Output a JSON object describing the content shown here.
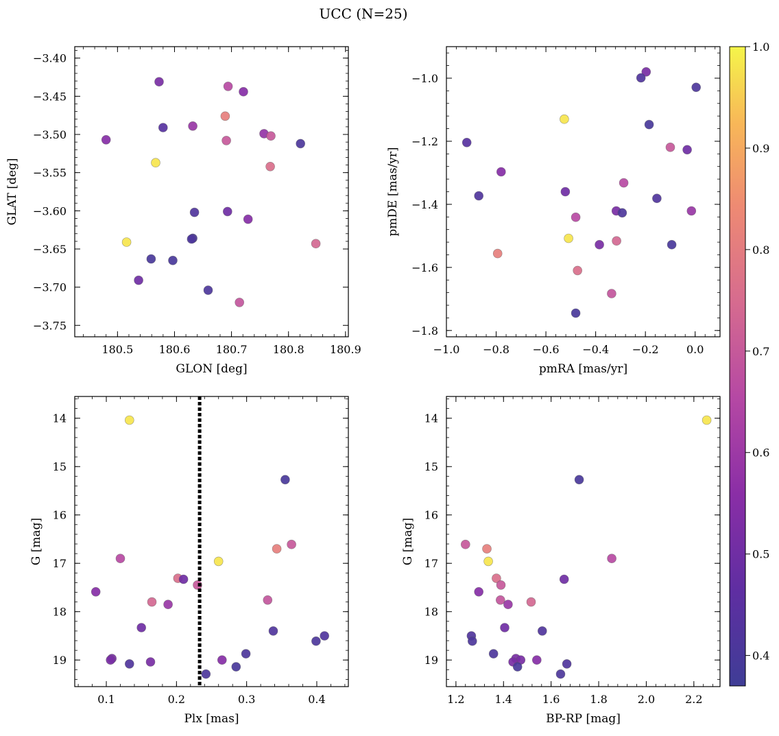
{
  "figure": {
    "suptitle": "UCC (N=25)",
    "colormap": "plasma",
    "colorbar": {
      "ticks": [
        "0.4",
        "0.5",
        "0.6",
        "0.7",
        "0.8",
        "0.9",
        "1.0"
      ],
      "range": [
        0.37,
        1.0
      ]
    }
  },
  "chart_data": [
    {
      "type": "scatter",
      "xlabel": "GLON [deg]",
      "ylabel": "GLAT [deg]",
      "xlim": [
        180.425,
        180.905
      ],
      "ylim": [
        -3.765,
        -3.385
      ],
      "xticks": [
        "180.5",
        "180.6",
        "180.7",
        "180.8",
        "180.9"
      ],
      "yticks": [
        "−3.40",
        "−3.45",
        "−3.50",
        "−3.55",
        "−3.60",
        "−3.65",
        "−3.70",
        "−3.75"
      ],
      "points": [
        {
          "x": 180.573,
          "y": -3.431,
          "c": 0.52
        },
        {
          "x": 180.694,
          "y": -3.437,
          "c": 0.66
        },
        {
          "x": 180.721,
          "y": -3.444,
          "c": 0.55
        },
        {
          "x": 180.689,
          "y": -3.476,
          "c": 0.81
        },
        {
          "x": 180.48,
          "y": -3.507,
          "c": 0.55
        },
        {
          "x": 180.58,
          "y": -3.491,
          "c": 0.44
        },
        {
          "x": 180.632,
          "y": -3.489,
          "c": 0.59
        },
        {
          "x": 180.757,
          "y": -3.499,
          "c": 0.58
        },
        {
          "x": 180.769,
          "y": -3.502,
          "c": 0.7
        },
        {
          "x": 180.691,
          "y": -3.508,
          "c": 0.7
        },
        {
          "x": 180.821,
          "y": -3.512,
          "c": 0.41
        },
        {
          "x": 180.567,
          "y": -3.537,
          "c": 0.98
        },
        {
          "x": 180.768,
          "y": -3.542,
          "c": 0.76
        },
        {
          "x": 180.635,
          "y": -3.602,
          "c": 0.42
        },
        {
          "x": 180.693,
          "y": -3.601,
          "c": 0.5
        },
        {
          "x": 180.729,
          "y": -3.611,
          "c": 0.55
        },
        {
          "x": 180.632,
          "y": -3.636,
          "c": 0.4
        },
        {
          "x": 180.516,
          "y": -3.641,
          "c": 0.98
        },
        {
          "x": 180.848,
          "y": -3.643,
          "c": 0.74
        },
        {
          "x": 180.559,
          "y": -3.663,
          "c": 0.4
        },
        {
          "x": 180.597,
          "y": -3.665,
          "c": 0.4
        },
        {
          "x": 180.537,
          "y": -3.691,
          "c": 0.5
        },
        {
          "x": 180.659,
          "y": -3.704,
          "c": 0.41
        },
        {
          "x": 180.714,
          "y": -3.72,
          "c": 0.69
        },
        {
          "x": 180.63,
          "y": -3.637,
          "c": 0.41
        }
      ]
    },
    {
      "type": "scatter",
      "xlabel": "pmRA [mas/yr]",
      "ylabel": "pmDE [mas/yr]",
      "xlim": [
        -1.0,
        0.1
      ],
      "ylim": [
        -1.82,
        -0.9
      ],
      "xticks": [
        "−1.0",
        "−0.8",
        "−0.6",
        "−0.4",
        "−0.2",
        "0.0"
      ],
      "yticks": [
        "−1.0",
        "−1.2",
        "−1.4",
        "−1.6",
        "−1.8"
      ],
      "points": [
        {
          "x": -0.197,
          "y": -0.98,
          "c": 0.52
        },
        {
          "x": -0.218,
          "y": -0.999,
          "c": 0.42
        },
        {
          "x": 0.004,
          "y": -1.029,
          "c": 0.41
        },
        {
          "x": -0.526,
          "y": -1.13,
          "c": 0.98
        },
        {
          "x": -0.185,
          "y": -1.147,
          "c": 0.4
        },
        {
          "x": -0.918,
          "y": -1.204,
          "c": 0.44
        },
        {
          "x": -0.1,
          "y": -1.219,
          "c": 0.7
        },
        {
          "x": -0.032,
          "y": -1.227,
          "c": 0.5
        },
        {
          "x": -0.78,
          "y": -1.297,
          "c": 0.55
        },
        {
          "x": -0.287,
          "y": -1.332,
          "c": 0.66
        },
        {
          "x": -0.522,
          "y": -1.36,
          "c": 0.5
        },
        {
          "x": -0.87,
          "y": -1.373,
          "c": 0.42
        },
        {
          "x": -0.154,
          "y": -1.381,
          "c": 0.42
        },
        {
          "x": -0.317,
          "y": -1.421,
          "c": 0.52
        },
        {
          "x": -0.015,
          "y": -1.421,
          "c": 0.59
        },
        {
          "x": -0.293,
          "y": -1.427,
          "c": 0.41
        },
        {
          "x": -0.48,
          "y": -1.441,
          "c": 0.66
        },
        {
          "x": -0.509,
          "y": -1.508,
          "c": 0.98
        },
        {
          "x": -0.316,
          "y": -1.516,
          "c": 0.74
        },
        {
          "x": -0.385,
          "y": -1.528,
          "c": 0.52
        },
        {
          "x": -0.094,
          "y": -1.528,
          "c": 0.4
        },
        {
          "x": -0.794,
          "y": -1.556,
          "c": 0.81
        },
        {
          "x": -0.473,
          "y": -1.61,
          "c": 0.76
        },
        {
          "x": -0.336,
          "y": -1.683,
          "c": 0.69
        },
        {
          "x": -0.48,
          "y": -1.745,
          "c": 0.4
        }
      ]
    },
    {
      "type": "scatter",
      "xlabel": "Plx [mas]",
      "ylabel": "G [mag]",
      "xlim": [
        0.055,
        0.445
      ],
      "ylim": [
        19.55,
        13.55
      ],
      "xticks": [
        "0.1",
        "0.2",
        "0.3",
        "0.4"
      ],
      "yticks": [
        "14",
        "15",
        "16",
        "17",
        "18",
        "19"
      ],
      "vline": {
        "x": 0.233
      },
      "points": [
        {
          "x": 0.133,
          "y": 14.04,
          "c": 0.98
        },
        {
          "x": 0.355,
          "y": 15.27,
          "c": 0.4
        },
        {
          "x": 0.364,
          "y": 16.61,
          "c": 0.7
        },
        {
          "x": 0.343,
          "y": 16.7,
          "c": 0.81
        },
        {
          "x": 0.12,
          "y": 16.9,
          "c": 0.66
        },
        {
          "x": 0.26,
          "y": 16.96,
          "c": 0.98
        },
        {
          "x": 0.202,
          "y": 17.31,
          "c": 0.76
        },
        {
          "x": 0.21,
          "y": 17.33,
          "c": 0.5
        },
        {
          "x": 0.23,
          "y": 17.45,
          "c": 0.7
        },
        {
          "x": 0.085,
          "y": 17.59,
          "c": 0.55
        },
        {
          "x": 0.33,
          "y": 17.76,
          "c": 0.69
        },
        {
          "x": 0.165,
          "y": 17.8,
          "c": 0.74
        },
        {
          "x": 0.188,
          "y": 17.85,
          "c": 0.59
        },
        {
          "x": 0.15,
          "y": 18.33,
          "c": 0.5
        },
        {
          "x": 0.338,
          "y": 18.4,
          "c": 0.42
        },
        {
          "x": 0.411,
          "y": 18.5,
          "c": 0.42
        },
        {
          "x": 0.399,
          "y": 18.61,
          "c": 0.41
        },
        {
          "x": 0.299,
          "y": 18.87,
          "c": 0.41
        },
        {
          "x": 0.108,
          "y": 18.97,
          "c": 0.52
        },
        {
          "x": 0.106,
          "y": 19.0,
          "c": 0.52
        },
        {
          "x": 0.265,
          "y": 19.0,
          "c": 0.55
        },
        {
          "x": 0.163,
          "y": 19.04,
          "c": 0.52
        },
        {
          "x": 0.133,
          "y": 19.08,
          "c": 0.42
        },
        {
          "x": 0.285,
          "y": 19.14,
          "c": 0.4
        },
        {
          "x": 0.242,
          "y": 19.29,
          "c": 0.41
        }
      ]
    },
    {
      "type": "scatter",
      "xlabel": "BP-RP [mag]",
      "ylabel": "G [mag]",
      "xlim": [
        1.16,
        2.31
      ],
      "ylim": [
        19.55,
        13.55
      ],
      "xticks": [
        "1.2",
        "1.4",
        "1.6",
        "1.8",
        "2.0",
        "2.2"
      ],
      "yticks": [
        "14",
        "15",
        "16",
        "17",
        "18",
        "19"
      ],
      "points": [
        {
          "x": 2.254,
          "y": 14.04,
          "c": 0.98
        },
        {
          "x": 1.718,
          "y": 15.27,
          "c": 0.4
        },
        {
          "x": 1.24,
          "y": 16.61,
          "c": 0.7
        },
        {
          "x": 1.33,
          "y": 16.7,
          "c": 0.81
        },
        {
          "x": 1.855,
          "y": 16.9,
          "c": 0.66
        },
        {
          "x": 1.336,
          "y": 16.96,
          "c": 0.98
        },
        {
          "x": 1.37,
          "y": 17.31,
          "c": 0.76
        },
        {
          "x": 1.655,
          "y": 17.33,
          "c": 0.5
        },
        {
          "x": 1.389,
          "y": 17.45,
          "c": 0.7
        },
        {
          "x": 1.296,
          "y": 17.59,
          "c": 0.55
        },
        {
          "x": 1.387,
          "y": 17.76,
          "c": 0.69
        },
        {
          "x": 1.516,
          "y": 17.8,
          "c": 0.74
        },
        {
          "x": 1.419,
          "y": 17.85,
          "c": 0.59
        },
        {
          "x": 1.405,
          "y": 18.33,
          "c": 0.5
        },
        {
          "x": 1.563,
          "y": 18.4,
          "c": 0.42
        },
        {
          "x": 1.265,
          "y": 18.5,
          "c": 0.42
        },
        {
          "x": 1.269,
          "y": 18.61,
          "c": 0.41
        },
        {
          "x": 1.358,
          "y": 18.87,
          "c": 0.41
        },
        {
          "x": 1.452,
          "y": 18.97,
          "c": 0.52
        },
        {
          "x": 1.472,
          "y": 19.0,
          "c": 0.52
        },
        {
          "x": 1.54,
          "y": 19.0,
          "c": 0.55
        },
        {
          "x": 1.44,
          "y": 19.04,
          "c": 0.52
        },
        {
          "x": 1.666,
          "y": 19.08,
          "c": 0.42
        },
        {
          "x": 1.459,
          "y": 19.14,
          "c": 0.4
        },
        {
          "x": 1.64,
          "y": 19.29,
          "c": 0.41
        }
      ]
    }
  ]
}
